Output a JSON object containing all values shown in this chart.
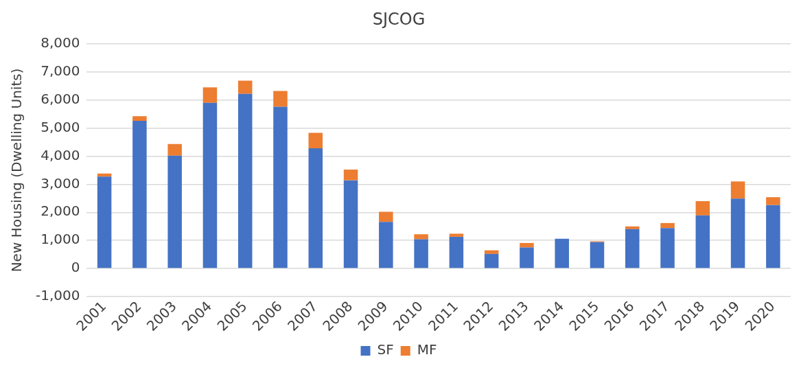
{
  "chart_data": {
    "type": "bar",
    "title": "SJCOG",
    "ylabel": "New Housing (Dwelling Units)",
    "categories": [
      "2001",
      "2002",
      "2003",
      "2004",
      "2005",
      "2006",
      "2007",
      "2008",
      "2009",
      "2010",
      "2011",
      "2012",
      "2013",
      "2014",
      "2015",
      "2016",
      "2017",
      "2018",
      "2019",
      "2020"
    ],
    "series": [
      {
        "name": "SF",
        "color": "#4472c4",
        "values": [
          3270,
          5260,
          4020,
          5900,
          6220,
          5760,
          4280,
          3140,
          1660,
          1040,
          1130,
          520,
          750,
          1060,
          940,
          1400,
          1440,
          1890,
          2490,
          2260
        ]
      },
      {
        "name": "MF",
        "color": "#ed7d31",
        "values": [
          110,
          160,
          410,
          550,
          470,
          560,
          550,
          380,
          360,
          180,
          110,
          130,
          160,
          0,
          30,
          100,
          180,
          510,
          610,
          280
        ]
      }
    ],
    "stacked": true,
    "ylim": [
      -1000,
      8000
    ],
    "yticks": [
      {
        "value": -1000,
        "label": "-1,000"
      },
      {
        "value": 0,
        "label": "0"
      },
      {
        "value": 1000,
        "label": "1,000"
      },
      {
        "value": 2000,
        "label": "2,000"
      },
      {
        "value": 3000,
        "label": "3,000"
      },
      {
        "value": 4000,
        "label": "4,000"
      },
      {
        "value": 5000,
        "label": "5,000"
      },
      {
        "value": 6000,
        "label": "6,000"
      },
      {
        "value": 7000,
        "label": "7,000"
      },
      {
        "value": 8000,
        "label": "8,000"
      }
    ],
    "grid": "y",
    "legend": "bottom"
  }
}
